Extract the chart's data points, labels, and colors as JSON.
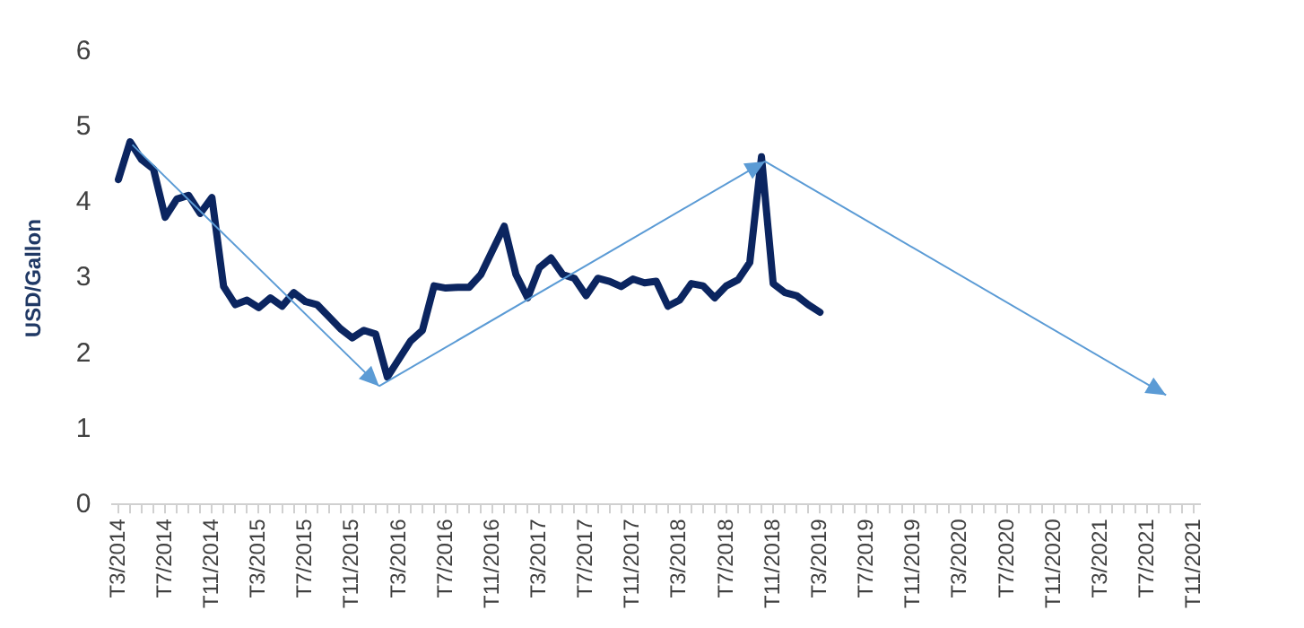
{
  "chart_data": {
    "type": "line",
    "ylabel": "USD/Gallon",
    "categories": [
      "T3/2014",
      null,
      null,
      null,
      "T7/2014",
      null,
      null,
      null,
      "T11/2014",
      null,
      null,
      null,
      "T3/2015",
      null,
      null,
      null,
      "T7/2015",
      null,
      null,
      null,
      "T11/2015",
      null,
      null,
      null,
      "T3/2016",
      null,
      null,
      null,
      "T7/2016",
      null,
      null,
      null,
      "T11/2016",
      null,
      null,
      null,
      "T3/2017",
      null,
      null,
      null,
      "T7/2017",
      null,
      null,
      null,
      "T11/2017",
      null,
      null,
      null,
      "T3/2018",
      null,
      null,
      null,
      "T7/2018",
      null,
      null,
      null,
      "T11/2018",
      null,
      null,
      null,
      "T3/2019",
      null,
      null,
      null,
      "T7/2019",
      null,
      null,
      null,
      "T11/2019",
      null,
      null,
      null,
      "T3/2020",
      null,
      null,
      null,
      "T7/2020",
      null,
      null,
      null,
      "T11/2020",
      null,
      null,
      null,
      "T3/2021",
      null,
      null,
      null,
      "T7/2021",
      null,
      null,
      null,
      "T11/2021"
    ],
    "series": [
      {
        "color": "#0b2560",
        "values": [
          4.31,
          4.81,
          4.57,
          4.45,
          3.81,
          4.05,
          4.1,
          3.86,
          4.07,
          2.89,
          2.65,
          2.71,
          2.61,
          2.74,
          2.63,
          2.81,
          2.69,
          2.65,
          2.49,
          2.33,
          2.21,
          2.31,
          2.26,
          1.69,
          1.93,
          2.17,
          2.31,
          2.9,
          2.87,
          2.88,
          2.88,
          3.05,
          3.37,
          3.69,
          3.05,
          2.74,
          3.14,
          3.27,
          3.05,
          3.0,
          2.77,
          3.0,
          2.96,
          2.89,
          2.99,
          2.94,
          2.96,
          2.63,
          2.71,
          2.93,
          2.9,
          2.74,
          2.9,
          2.98,
          3.21,
          4.61,
          2.93,
          2.81,
          2.77,
          2.65,
          2.55,
          null,
          null,
          null,
          null,
          null,
          null,
          null,
          null,
          null,
          null,
          null,
          null,
          null,
          null,
          null,
          null,
          null,
          null,
          null,
          null,
          null,
          null,
          null,
          null,
          null,
          null,
          null,
          null,
          null,
          null,
          null,
          null
        ]
      }
    ],
    "ylim": [
      0,
      6
    ],
    "yticks": [
      0,
      1,
      2,
      3,
      4,
      5,
      6
    ],
    "grid": false,
    "legend": false,
    "marker": "none",
    "line_style": "solid"
  }
}
